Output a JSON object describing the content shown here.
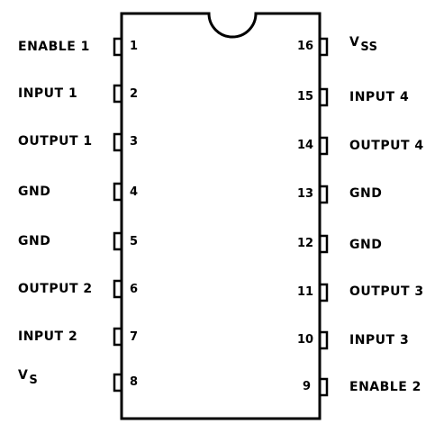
{
  "pins_left": [
    {
      "number": "1",
      "label": "ENABLE 1"
    },
    {
      "number": "2",
      "label": "INPUT 1"
    },
    {
      "number": "3",
      "label": "OUTPUT 1"
    },
    {
      "number": "4",
      "label": "GND"
    },
    {
      "number": "5",
      "label": "GND"
    },
    {
      "number": "6",
      "label": "OUTPUT 2"
    },
    {
      "number": "7",
      "label": "INPUT 2"
    },
    {
      "number": "8",
      "label": "V",
      "label_sub": "S"
    }
  ],
  "pins_right": [
    {
      "number": "16",
      "label": "V",
      "label_sub": "SS"
    },
    {
      "number": "15",
      "label": "INPUT 4"
    },
    {
      "number": "14",
      "label": "OUTPUT 4"
    },
    {
      "number": "13",
      "label": "GND"
    },
    {
      "number": "12",
      "label": "GND"
    },
    {
      "number": "11",
      "label": "OUTPUT 3"
    },
    {
      "number": "10",
      "label": "INPUT 3"
    },
    {
      "number": "9",
      "label": "ENABLE 2"
    }
  ],
  "colors": {
    "ink": "#000000",
    "background": "#ffffff"
  }
}
